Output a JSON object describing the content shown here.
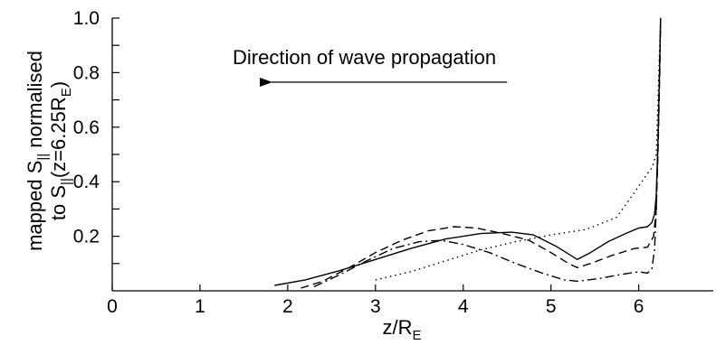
{
  "chart_data": {
    "type": "line",
    "title": "",
    "xlabel": {
      "base": "z/R",
      "sub": "E"
    },
    "ylabel": {
      "line1": {
        "pre": "mapped S",
        "sub": "||",
        "post": " normalised"
      },
      "line2": {
        "pre": "to S",
        "sub": "||",
        "mid": "(z=6.25R",
        "sub2": "E",
        "post": ")"
      }
    },
    "xlim": [
      0,
      6.85
    ],
    "ylim": [
      0,
      1.0
    ],
    "xticks": [
      {
        "value": 0,
        "label": "0"
      },
      {
        "value": 1,
        "label": "1"
      },
      {
        "value": 2,
        "label": "2"
      },
      {
        "value": 3,
        "label": "3"
      },
      {
        "value": 4,
        "label": "4"
      },
      {
        "value": 5,
        "label": "5"
      },
      {
        "value": 6,
        "label": "6"
      }
    ],
    "yticks": [
      {
        "value": 0.2,
        "label": "0.2"
      },
      {
        "value": 0.4,
        "label": "0.4"
      },
      {
        "value": 0.6,
        "label": "0.6"
      },
      {
        "value": 0.8,
        "label": "0.8"
      },
      {
        "value": 1.0,
        "label": "1.0"
      }
    ],
    "yminor": [
      0.1,
      0.3,
      0.5,
      0.7,
      0.9
    ],
    "annotation": {
      "text": "Direction of wave propagation",
      "arrow": {
        "from": [
          4.5,
          0.765
        ],
        "to": [
          3.8,
          0.765
        ]
      }
    },
    "grid": false,
    "legend": "none",
    "series": [
      {
        "style": "solid",
        "x": [
          1.85,
          2.2,
          2.6,
          3.0,
          3.4,
          3.8,
          4.2,
          4.55,
          4.8,
          5.05,
          5.2,
          5.3,
          5.45,
          5.65,
          5.85,
          6.0,
          6.1,
          6.15,
          6.18,
          6.2,
          6.22,
          6.24,
          6.25
        ],
        "y": [
          0.02,
          0.04,
          0.075,
          0.115,
          0.155,
          0.19,
          0.21,
          0.215,
          0.205,
          0.165,
          0.135,
          0.115,
          0.14,
          0.18,
          0.21,
          0.23,
          0.235,
          0.25,
          0.28,
          0.35,
          0.55,
          0.85,
          1.0
        ]
      },
      {
        "style": "dashed",
        "x": [
          2.15,
          2.4,
          2.7,
          3.0,
          3.3,
          3.6,
          3.9,
          4.15,
          4.45,
          4.75,
          5.0,
          5.2,
          5.3,
          5.45,
          5.7,
          5.95,
          6.1,
          6.17,
          6.2,
          6.22,
          6.24,
          6.25
        ],
        "y": [
          0.01,
          0.035,
          0.085,
          0.14,
          0.185,
          0.22,
          0.235,
          0.23,
          0.21,
          0.185,
          0.14,
          0.1,
          0.085,
          0.1,
          0.13,
          0.155,
          0.16,
          0.2,
          0.3,
          0.5,
          0.8,
          1.0
        ]
      },
      {
        "style": "dashdot",
        "x": [
          2.3,
          2.6,
          2.9,
          3.2,
          3.5,
          3.75,
          4.0,
          4.3,
          4.6,
          4.9,
          5.15,
          5.3,
          5.55,
          5.8,
          6.0,
          6.1,
          6.15,
          6.18,
          6.2,
          6.22,
          6.24,
          6.25
        ],
        "y": [
          0.015,
          0.06,
          0.11,
          0.155,
          0.18,
          0.185,
          0.17,
          0.14,
          0.1,
          0.065,
          0.04,
          0.035,
          0.045,
          0.06,
          0.07,
          0.065,
          0.08,
          0.15,
          0.3,
          0.55,
          0.85,
          1.0
        ]
      },
      {
        "style": "dotted",
        "x": [
          3.0,
          3.4,
          3.8,
          4.2,
          4.6,
          5.0,
          5.4,
          5.75,
          5.95,
          6.1,
          6.15,
          6.2,
          6.22,
          6.25
        ],
        "y": [
          0.04,
          0.07,
          0.11,
          0.15,
          0.18,
          0.205,
          0.225,
          0.27,
          0.36,
          0.43,
          0.45,
          0.5,
          0.7,
          1.0
        ]
      }
    ]
  }
}
